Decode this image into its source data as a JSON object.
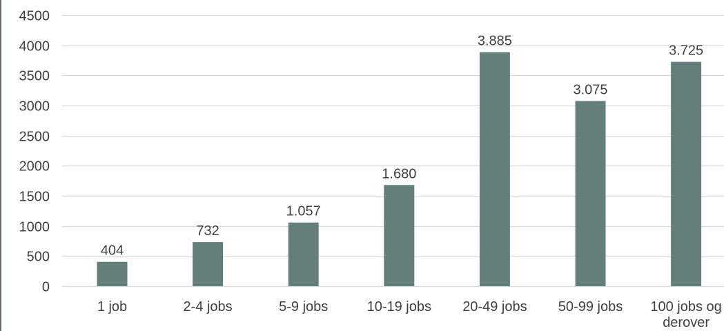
{
  "chart_data": {
    "type": "bar",
    "categories": [
      "1 job",
      "2-4 jobs",
      "5-9 jobs",
      "10-19 jobs",
      "20-49 jobs",
      "50-99 jobs",
      [
        "100 jobs og",
        "derover"
      ]
    ],
    "values": [
      404,
      732,
      1057,
      1680,
      3885,
      3075,
      3725
    ],
    "data_labels": [
      "404",
      "732",
      "1.057",
      "1.680",
      "3.885",
      "3.075",
      "3.725"
    ],
    "ylim": [
      0,
      4500
    ],
    "y_ticks": [
      0,
      500,
      1000,
      1500,
      2000,
      2500,
      3000,
      3500,
      4000,
      4500
    ],
    "title": "",
    "xlabel": "",
    "ylabel": "",
    "grid": true,
    "legend": "none",
    "colors": {
      "bar": "#647f7a",
      "grid": "#d9d9d9",
      "text": "#404040"
    }
  }
}
